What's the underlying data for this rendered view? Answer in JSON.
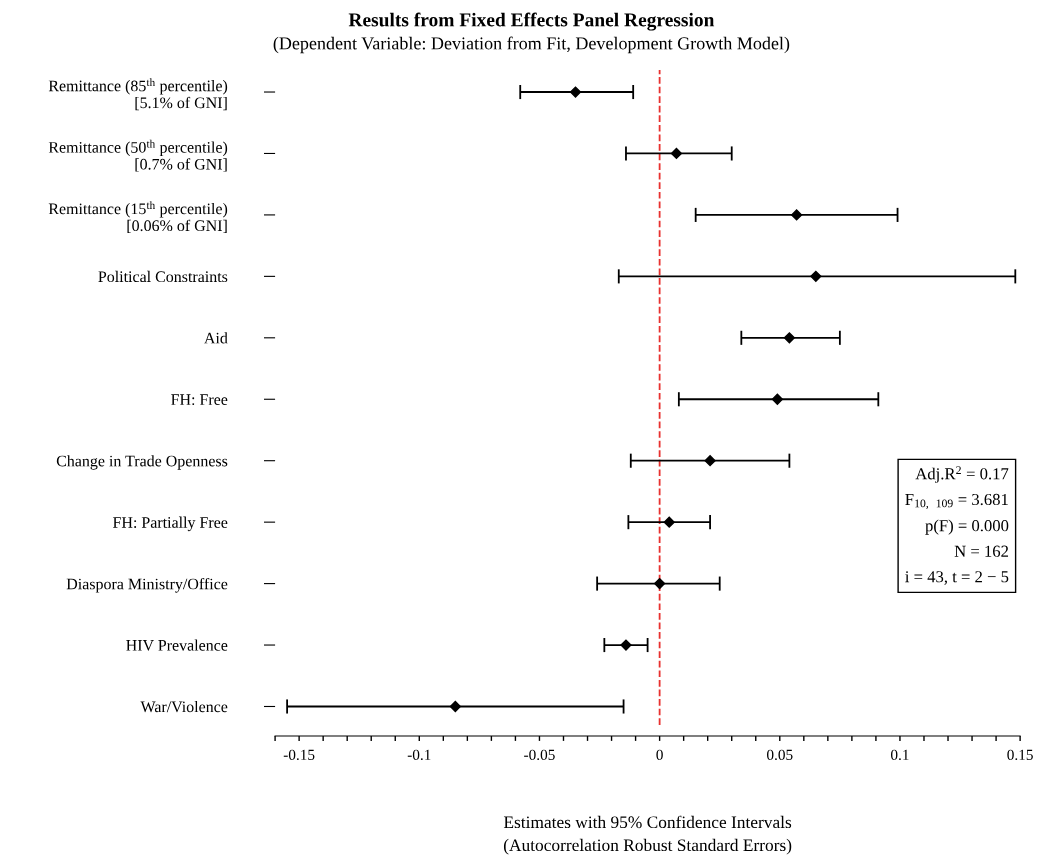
{
  "chart_data": {
    "type": "scatter",
    "orientation": "horizontal",
    "title": "Results from Fixed Effects Panel Regression",
    "subtitle": "(Dependent Variable: Deviation from Fit, Development Growth Model)",
    "xlabel": "Estimates with 95% Confidence Intervals\n(Autocorrelation Robust Standard Errors)",
    "categories": [
      "Remittance (85$^{th}$ percentile)\n[5.1% of GNI]",
      "Remittance (50$^{th}$ percentile)\n[0.7% of GNI]",
      "Remittance (15$^{th}$ percentile)\n[0.06% of GNI]",
      "Political Constraints",
      "Aid",
      "FH: Free",
      "Change in Trade Openness",
      "FH: Partially Free",
      "Diaspora Ministry/Office",
      "HIV Prevalence",
      "War/Violence"
    ],
    "series": [
      {
        "color": "#000000",
        "values": [
          -0.035,
          0.007,
          0.057,
          0.065,
          0.054,
          0.049,
          0.021,
          0.004,
          0.0,
          -0.014,
          -0.085
        ],
        "errors": [
          [
            -0.058,
            -0.011
          ],
          [
            -0.014,
            0.03
          ],
          [
            0.015,
            0.099
          ],
          [
            -0.017,
            0.148
          ],
          [
            0.034,
            0.075
          ],
          [
            0.008,
            0.091
          ],
          [
            -0.012,
            0.054
          ],
          [
            -0.013,
            0.021
          ],
          [
            -0.026,
            0.025
          ],
          [
            -0.023,
            -0.005
          ],
          [
            -0.155,
            -0.015
          ]
        ]
      }
    ],
    "marker": "diamond",
    "xlim": [
      -0.16,
      0.15
    ],
    "xticks": [
      {
        "value": -0.16,
        "label": null
      },
      -0.15,
      {
        "value": -0.14,
        "label": null
      },
      {
        "value": -0.13,
        "label": null
      },
      {
        "value": -0.12,
        "label": null
      },
      {
        "value": -0.11,
        "label": null
      },
      -0.1,
      {
        "value": -0.09,
        "label": null
      },
      {
        "value": -0.08,
        "label": null
      },
      {
        "value": -0.07,
        "label": null
      },
      {
        "value": -0.06,
        "label": null
      },
      -0.05,
      {
        "value": -0.04,
        "label": null
      },
      {
        "value": -0.03,
        "label": null
      },
      {
        "value": -0.02,
        "label": null
      },
      {
        "value": -0.01,
        "label": null
      },
      0,
      {
        "value": 0.01,
        "label": null
      },
      {
        "value": 0.02,
        "label": null
      },
      {
        "value": 0.03,
        "label": null
      },
      {
        "value": 0.04,
        "label": null
      },
      0.05,
      {
        "value": 0.06,
        "label": null
      },
      {
        "value": 0.07,
        "label": null
      },
      {
        "value": 0.08,
        "label": null
      },
      {
        "value": 0.09,
        "label": null
      },
      0.1,
      {
        "value": 0.11,
        "label": null
      },
      {
        "value": 0.12,
        "label": null
      },
      {
        "value": 0.13,
        "label": null
      },
      {
        "value": 0.14,
        "label": null
      },
      0.15
    ],
    "ref_lines": [
      {
        "axis": "x",
        "value": 0,
        "color": "#e8312f",
        "line_style": "dashed"
      }
    ],
    "annotations": [
      "Adj.R$^{2}$ = 0.17",
      "F$_{10,}$ $_{109}$ = 3.681",
      "p(F) = 0.000",
      "N = 162",
      "i = 43, t = 2 − 5"
    ],
    "grid": false,
    "legend": false
  }
}
